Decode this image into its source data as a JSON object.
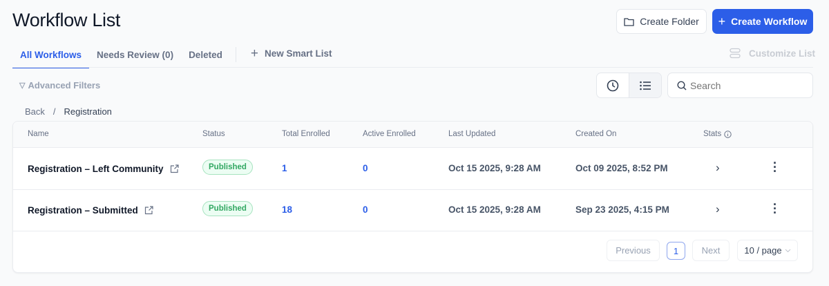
{
  "page": {
    "title": "Workflow List"
  },
  "header": {
    "create_folder": "Create Folder",
    "create_workflow": "Create Workflow"
  },
  "tabs": [
    {
      "label": "All Workflows",
      "active": true
    },
    {
      "label": "Needs Review (0)"
    },
    {
      "label": "Deleted"
    }
  ],
  "new_smart_list": "New Smart List",
  "customize_list": "Customize List",
  "advanced_filters": "Advanced Filters",
  "search": {
    "placeholder": "Search",
    "value": ""
  },
  "breadcrumb": {
    "back": "Back",
    "separator": "/",
    "current": "Registration"
  },
  "table": {
    "columns": [
      "Name",
      "Status",
      "Total Enrolled",
      "Active Enrolled",
      "Last Updated",
      "Created On",
      "Stats"
    ],
    "rows": [
      {
        "name": "Registration – Left Community",
        "status": "Published",
        "total": "1",
        "active": "0",
        "updated": "Oct 15 2025, 9:28 AM",
        "created": "Oct 09 2025, 8:52 PM"
      },
      {
        "name": "Registration – Submitted",
        "status": "Published",
        "total": "18",
        "active": "0",
        "updated": "Oct 15 2025, 9:28 AM",
        "created": "Sep 23 2025, 4:15 PM"
      }
    ]
  },
  "pagination": {
    "previous": "Previous",
    "current_page": "1",
    "next": "Next",
    "page_size": "10 / page"
  },
  "colors": {
    "accent": "#2c5ee8",
    "published": "#32a862"
  }
}
